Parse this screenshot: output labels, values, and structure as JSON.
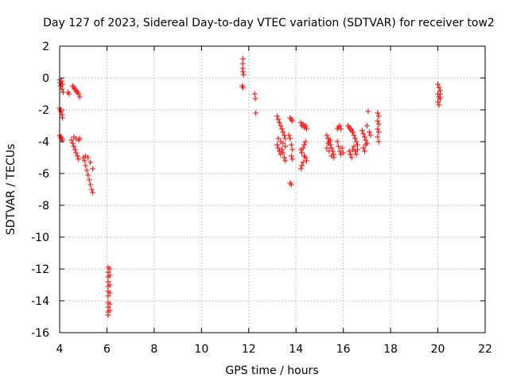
{
  "chart_data": {
    "type": "scatter",
    "title": "Day 127 of 2023, Sidereal Day-to-day VTEC variation (SDTVAR) for receiver tow2",
    "xlabel": "GPS time / hours",
    "ylabel": "SDTVAR / TECUs",
    "xlim": [
      4,
      22
    ],
    "ylim": [
      -16,
      2
    ],
    "xticks": [
      4,
      6,
      8,
      10,
      12,
      14,
      16,
      18,
      20,
      22
    ],
    "yticks": [
      2,
      0,
      -2,
      -4,
      -6,
      -8,
      -10,
      -12,
      -14,
      -16
    ],
    "grid": true,
    "marker": "+",
    "color": "#ff0000",
    "series": [
      {
        "name": "SDTVAR",
        "points": [
          [
            4.0,
            -0.1
          ],
          [
            4.02,
            -0.3
          ],
          [
            4.05,
            -0.5
          ],
          [
            4.08,
            -0.2
          ],
          [
            4.1,
            -0.7
          ],
          [
            4.12,
            -0.4
          ],
          [
            4.15,
            -0.9
          ],
          [
            4.0,
            -1.9
          ],
          [
            4.03,
            -2.0
          ],
          [
            4.06,
            -2.1
          ],
          [
            4.1,
            -2.3
          ],
          [
            4.12,
            -2.5
          ],
          [
            4.0,
            -3.6
          ],
          [
            4.04,
            -3.7
          ],
          [
            4.08,
            -3.8
          ],
          [
            4.12,
            -3.9
          ],
          [
            4.35,
            -0.9
          ],
          [
            4.4,
            -1.0
          ],
          [
            4.55,
            -0.5
          ],
          [
            4.6,
            -0.6
          ],
          [
            4.65,
            -0.7
          ],
          [
            4.7,
            -0.8
          ],
          [
            4.75,
            -0.9
          ],
          [
            4.8,
            -1.0
          ],
          [
            4.85,
            -1.2
          ],
          [
            4.5,
            -3.9
          ],
          [
            4.55,
            -4.1
          ],
          [
            4.6,
            -4.3
          ],
          [
            4.65,
            -4.5
          ],
          [
            4.7,
            -4.7
          ],
          [
            4.75,
            -4.9
          ],
          [
            4.8,
            -5.1
          ],
          [
            4.6,
            -3.7
          ],
          [
            4.7,
            -3.8
          ],
          [
            4.8,
            -3.9
          ],
          [
            4.85,
            -3.8
          ],
          [
            5.0,
            -5.0
          ],
          [
            5.05,
            -5.2
          ],
          [
            5.1,
            -5.5
          ],
          [
            5.15,
            -5.8
          ],
          [
            5.2,
            -6.1
          ],
          [
            5.25,
            -6.4
          ],
          [
            5.3,
            -6.7
          ],
          [
            5.35,
            -7.0
          ],
          [
            5.4,
            -7.2
          ],
          [
            5.1,
            -4.9
          ],
          [
            5.2,
            -5.0
          ],
          [
            5.3,
            -5.3
          ],
          [
            5.4,
            -5.7
          ],
          [
            6.05,
            -11.9
          ],
          [
            6.05,
            -12.2
          ],
          [
            6.05,
            -12.5
          ],
          [
            6.05,
            -12.8
          ],
          [
            6.05,
            -13.1
          ],
          [
            6.05,
            -13.4
          ],
          [
            6.05,
            -13.7
          ],
          [
            6.05,
            -14.1
          ],
          [
            6.05,
            -14.4
          ],
          [
            6.05,
            -14.7
          ],
          [
            6.05,
            -14.9
          ],
          [
            6.12,
            -12.0
          ],
          [
            6.12,
            -12.4
          ],
          [
            6.12,
            -13.0
          ],
          [
            6.12,
            -13.5
          ],
          [
            6.12,
            -14.2
          ],
          [
            6.12,
            -14.6
          ],
          [
            11.75,
            1.2
          ],
          [
            11.75,
            0.9
          ],
          [
            11.75,
            0.6
          ],
          [
            11.75,
            0.4
          ],
          [
            11.78,
            0.2
          ],
          [
            11.72,
            -0.5
          ],
          [
            11.76,
            -0.6
          ],
          [
            12.25,
            -1.0
          ],
          [
            12.28,
            -1.3
          ],
          [
            12.3,
            -2.2
          ],
          [
            13.2,
            -2.4
          ],
          [
            13.25,
            -2.6
          ],
          [
            13.3,
            -2.8
          ],
          [
            13.35,
            -3.0
          ],
          [
            13.4,
            -3.2
          ],
          [
            13.45,
            -3.4
          ],
          [
            13.5,
            -3.6
          ],
          [
            13.55,
            -3.8
          ],
          [
            13.2,
            -4.2
          ],
          [
            13.25,
            -4.4
          ],
          [
            13.3,
            -4.6
          ],
          [
            13.35,
            -4.8
          ],
          [
            13.4,
            -4.5
          ],
          [
            13.45,
            -4.7
          ],
          [
            13.5,
            -5.0
          ],
          [
            13.55,
            -5.2
          ],
          [
            13.25,
            -3.8
          ],
          [
            13.35,
            -4.0
          ],
          [
            13.45,
            -4.1
          ],
          [
            13.55,
            -4.3
          ],
          [
            13.75,
            -2.5
          ],
          [
            13.8,
            -2.6
          ],
          [
            13.85,
            -2.7
          ],
          [
            13.7,
            -3.6
          ],
          [
            13.75,
            -3.8
          ],
          [
            13.8,
            -4.2
          ],
          [
            13.85,
            -4.5
          ],
          [
            13.8,
            -4.9
          ],
          [
            13.85,
            -5.1
          ],
          [
            13.75,
            -6.6
          ],
          [
            13.8,
            -6.7
          ],
          [
            14.2,
            -2.8
          ],
          [
            14.25,
            -3.0
          ],
          [
            14.3,
            -2.9
          ],
          [
            14.35,
            -3.1
          ],
          [
            14.4,
            -3.0
          ],
          [
            14.45,
            -3.2
          ],
          [
            14.2,
            -4.5
          ],
          [
            14.25,
            -4.7
          ],
          [
            14.3,
            -4.4
          ],
          [
            14.35,
            -4.9
          ],
          [
            14.4,
            -5.0
          ],
          [
            14.45,
            -5.2
          ],
          [
            14.25,
            -5.5
          ],
          [
            14.3,
            -5.3
          ],
          [
            14.35,
            -4.2
          ],
          [
            14.4,
            -4.0
          ],
          [
            14.2,
            -5.7
          ],
          [
            15.3,
            -3.6
          ],
          [
            15.35,
            -3.8
          ],
          [
            15.4,
            -4.0
          ],
          [
            15.45,
            -4.2
          ],
          [
            15.5,
            -4.4
          ],
          [
            15.55,
            -4.6
          ],
          [
            15.6,
            -4.8
          ],
          [
            15.3,
            -4.4
          ],
          [
            15.4,
            -4.6
          ],
          [
            15.5,
            -4.9
          ],
          [
            15.6,
            -5.0
          ],
          [
            15.35,
            -4.1
          ],
          [
            15.45,
            -3.9
          ],
          [
            15.75,
            -3.2
          ],
          [
            15.8,
            -3.1
          ],
          [
            15.85,
            -3.0
          ],
          [
            15.9,
            -3.2
          ],
          [
            15.75,
            -4.0
          ],
          [
            15.8,
            -4.3
          ],
          [
            15.85,
            -4.6
          ],
          [
            15.9,
            -4.8
          ],
          [
            15.95,
            -4.4
          ],
          [
            16.0,
            -4.7
          ],
          [
            16.2,
            -3.0
          ],
          [
            16.25,
            -3.1
          ],
          [
            16.3,
            -3.2
          ],
          [
            16.35,
            -3.3
          ],
          [
            16.4,
            -3.4
          ],
          [
            16.45,
            -3.6
          ],
          [
            16.5,
            -3.8
          ],
          [
            16.55,
            -4.0
          ],
          [
            16.6,
            -4.2
          ],
          [
            16.25,
            -4.6
          ],
          [
            16.3,
            -4.8
          ],
          [
            16.35,
            -5.0
          ],
          [
            16.4,
            -4.5
          ],
          [
            16.45,
            -4.3
          ],
          [
            16.5,
            -4.6
          ],
          [
            16.55,
            -4.8
          ],
          [
            16.6,
            -4.5
          ],
          [
            16.8,
            -3.3
          ],
          [
            16.85,
            -3.5
          ],
          [
            16.9,
            -3.7
          ],
          [
            16.95,
            -3.9
          ],
          [
            17.0,
            -4.1
          ],
          [
            16.85,
            -4.4
          ],
          [
            16.9,
            -4.6
          ],
          [
            16.95,
            -4.2
          ],
          [
            17.0,
            -3.0
          ],
          [
            17.05,
            -2.1
          ],
          [
            17.1,
            -3.4
          ],
          [
            17.15,
            -3.6
          ],
          [
            17.45,
            -2.2
          ],
          [
            17.5,
            -2.4
          ],
          [
            17.45,
            -2.7
          ],
          [
            17.5,
            -2.9
          ],
          [
            17.45,
            -3.2
          ],
          [
            17.5,
            -3.4
          ],
          [
            17.45,
            -3.7
          ],
          [
            17.5,
            -4.0
          ],
          [
            20.0,
            -0.4
          ],
          [
            20.05,
            -0.6
          ],
          [
            20.1,
            -0.8
          ],
          [
            20.0,
            -1.0
          ],
          [
            20.05,
            -1.2
          ],
          [
            20.1,
            -1.0
          ],
          [
            20.0,
            -1.5
          ],
          [
            20.05,
            -1.7
          ],
          [
            20.1,
            -1.3
          ]
        ]
      }
    ]
  }
}
